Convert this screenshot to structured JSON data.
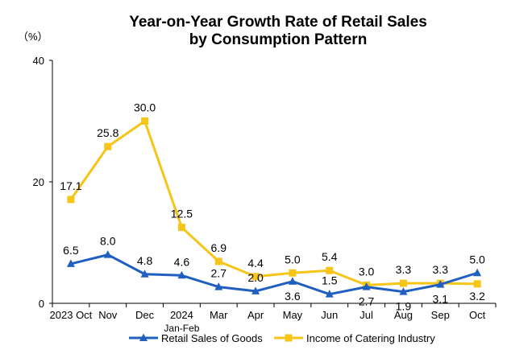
{
  "chart_data": {
    "type": "line",
    "title_line1": "Year-on-Year Growth Rate of Retail Sales",
    "title_line2": "by Consumption Pattern",
    "y_unit": "（%）",
    "ylim": [
      0,
      40
    ],
    "yticks": [
      "0",
      "20",
      "40"
    ],
    "categories": [
      "2023 Oct",
      "Nov",
      "Dec",
      "2024",
      "Mar",
      "Apr",
      "May",
      "Jun",
      "Jul",
      "Aug",
      "Sep",
      "Oct"
    ],
    "category_sublabel": "Jan-Feb",
    "series": [
      {
        "name": "Retail Sales of Goods",
        "color": "#1f5fbf",
        "marker": "triangle",
        "values": [
          6.5,
          8.0,
          4.8,
          4.6,
          2.7,
          2.0,
          3.6,
          1.5,
          2.7,
          1.9,
          3.1,
          5.0
        ],
        "labels": [
          "6.5",
          "8.0",
          "4.8",
          "4.6",
          "2.7",
          "2.0",
          "3.6",
          "1.5",
          "2.7",
          "1.9",
          "3.1",
          "5.0"
        ]
      },
      {
        "name": "Income of Catering Industry",
        "color": "#f5c518",
        "marker": "square",
        "values": [
          17.1,
          25.8,
          30.0,
          12.5,
          6.9,
          4.4,
          5.0,
          5.4,
          3.0,
          3.3,
          3.3,
          3.2
        ],
        "labels": [
          "17.1",
          "25.8",
          "30.0",
          "12.5",
          "6.9",
          "4.4",
          "5.0",
          "5.4",
          "3.0",
          "3.3",
          "3.3",
          "3.2"
        ]
      }
    ],
    "grid": false,
    "legend_position": "bottom"
  }
}
